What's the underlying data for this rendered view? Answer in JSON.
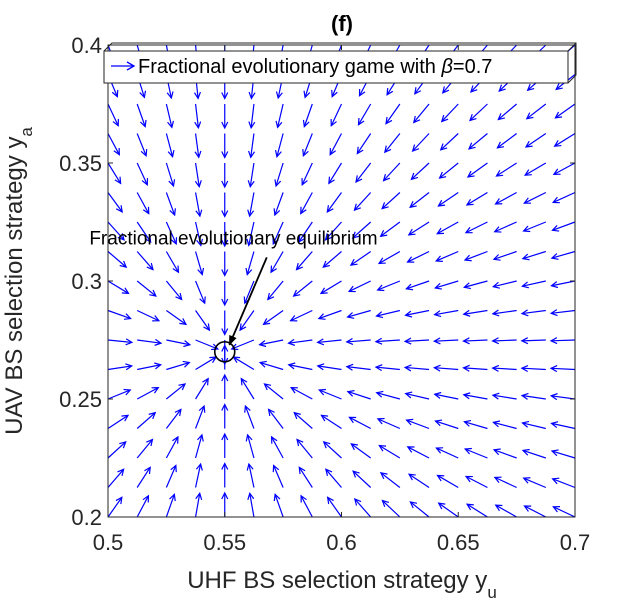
{
  "chart_data": {
    "type": "quiver",
    "title": "(f)",
    "xlabel": "UHF BS selection strategy y",
    "xlabel_subscript": "u",
    "ylabel": "UAV BS selection strategy y",
    "ylabel_subscript": "a",
    "xlim": [
      0.5,
      0.7
    ],
    "ylim": [
      0.2,
      0.4
    ],
    "xticks": [
      "0.5",
      "0.55",
      "0.6",
      "0.65",
      "0.7"
    ],
    "yticks": [
      "0.2",
      "0.25",
      "0.3",
      "0.35",
      "0.4"
    ],
    "grid": false,
    "legend": {
      "label_prefix": "Fractional evolutionary game with ",
      "label_symbol": "β",
      "label_suffix": "=0.7",
      "placement": "top-left"
    },
    "field": {
      "x_range": [
        0.5,
        0.7
      ],
      "y_range": [
        0.2,
        0.4
      ],
      "steps": 16,
      "color": "#0000ff"
    },
    "equilibrium": {
      "x": 0.55,
      "y": 0.27
    },
    "annotation": {
      "text": "Fractional evolutionary equilibrium",
      "text_anchor": {
        "x": 0.492,
        "y": 0.3155
      },
      "arrow_from": {
        "x": 0.568,
        "y": 0.31
      },
      "arrow_to": {
        "x": 0.552,
        "y": 0.273
      }
    }
  }
}
